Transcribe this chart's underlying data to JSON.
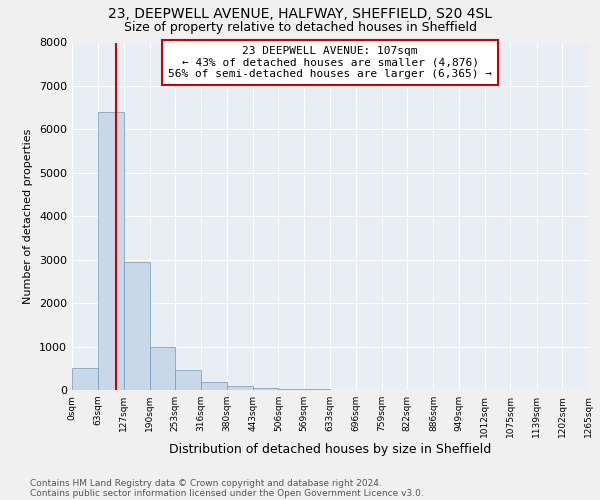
{
  "title1": "23, DEEPWELL AVENUE, HALFWAY, SHEFFIELD, S20 4SL",
  "title2": "Size of property relative to detached houses in Sheffield",
  "xlabel": "Distribution of detached houses by size in Sheffield",
  "ylabel": "Number of detached properties",
  "annotation_line1": "23 DEEPWELL AVENUE: 107sqm",
  "annotation_line2": "← 43% of detached houses are smaller (4,876)",
  "annotation_line3": "56% of semi-detached houses are larger (6,365) →",
  "footnote1": "Contains HM Land Registry data © Crown copyright and database right 2024.",
  "footnote2": "Contains public sector information licensed under the Open Government Licence v3.0.",
  "bin_edges": [
    0,
    63,
    127,
    190,
    253,
    316,
    380,
    443,
    506,
    569,
    633,
    696,
    759,
    822,
    886,
    949,
    1012,
    1075,
    1139,
    1202,
    1265
  ],
  "bar_heights": [
    500,
    6400,
    2950,
    1000,
    450,
    175,
    100,
    50,
    30,
    15,
    10,
    8,
    5,
    3,
    2,
    1,
    1,
    0,
    0,
    0
  ],
  "bar_color": "#c8d8e8",
  "bar_edge_color": "#7098b8",
  "vline_x": 107,
  "vline_color": "#cc0000",
  "annotation_box_color": "#cc0000",
  "ylim": [
    0,
    8000
  ],
  "yticks": [
    0,
    1000,
    2000,
    3000,
    4000,
    5000,
    6000,
    7000,
    8000
  ],
  "background_color": "#e8eef4",
  "grid_color": "#ffffff",
  "title1_fontsize": 10,
  "title2_fontsize": 9
}
